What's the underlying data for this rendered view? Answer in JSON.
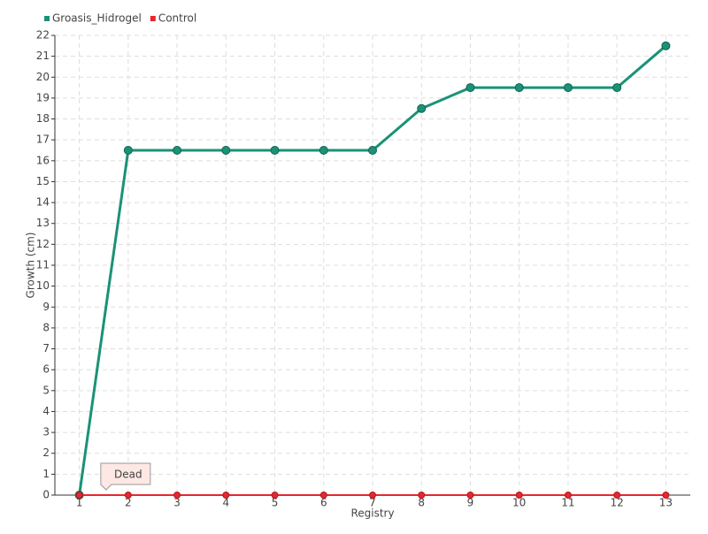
{
  "chart_data": {
    "type": "line",
    "categories": [
      "1",
      "2",
      "3",
      "4",
      "5",
      "6",
      "7",
      "8",
      "9",
      "10",
      "11",
      "12",
      "13"
    ],
    "series": [
      {
        "name": "Groasis_Hidrogel",
        "color": "#1a9278",
        "values": [
          0,
          16.5,
          16.5,
          16.5,
          16.5,
          16.5,
          16.5,
          18.5,
          19.5,
          19.5,
          19.5,
          19.5,
          21.5
        ]
      },
      {
        "name": "Control",
        "color": "#e8262d",
        "values": [
          0,
          0,
          0,
          0,
          0,
          0,
          0,
          0,
          0,
          0,
          0,
          0,
          0
        ]
      }
    ],
    "x_label": "Registry",
    "y_label": "Growth (cm)",
    "ylim": [
      0,
      22
    ],
    "yticks": [
      0,
      1,
      2,
      3,
      4,
      5,
      6,
      7,
      8,
      9,
      10,
      11,
      12,
      13,
      14,
      15,
      16,
      17,
      18,
      19,
      20,
      21,
      22
    ],
    "grid": true,
    "legend": "top-left",
    "annotations": [
      {
        "text": "Dead",
        "x": "2"
      }
    ]
  }
}
